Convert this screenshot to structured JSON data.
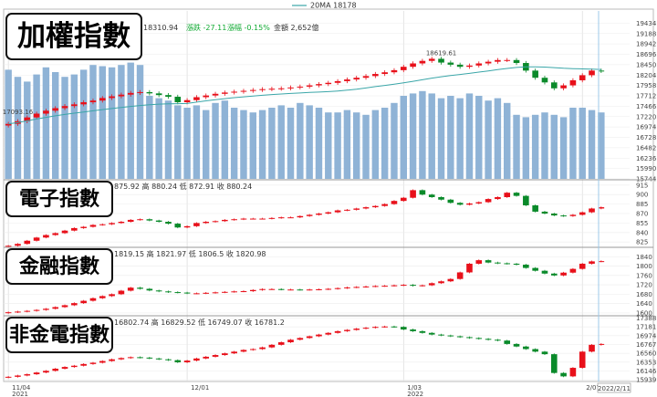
{
  "header": {
    "legend": "20MA 18178",
    "price": "18310.94",
    "change_label": "漲跌 -27.11",
    "pct_label": "漲幅 -0.15%",
    "amount_label": "金額 2,652億"
  },
  "labels": [
    "加權指數",
    "電子指數",
    "金融指數",
    "非金電指數"
  ],
  "colors": {
    "up": "#e8101a",
    "down": "#0a8a2a",
    "ma": "#3aa6a8",
    "volume": "#8fb3d6",
    "grid": "#d9d9d9"
  },
  "x_axis": {
    "ticks": [
      {
        "label": "11/04",
        "sub": "2021",
        "i": 0
      },
      {
        "label": "12/01",
        "sub": "",
        "i": 19
      },
      {
        "label": "1/03",
        "sub": "2022",
        "i": 42
      },
      {
        "label": "2/07",
        "sub": "",
        "i": 61
      }
    ],
    "cursor_label": "2022/2/11"
  },
  "chart_data": [
    {
      "type": "candlestick",
      "name": "加權指數",
      "ylim": [
        15744,
        19680
      ],
      "yticks": [
        15744,
        15990,
        16236,
        16482,
        16728,
        16974,
        17220,
        17466,
        17712,
        17958,
        18204,
        18450,
        18696,
        18942,
        19188,
        19434
      ],
      "annotations": [
        {
          "text": "18619.61",
          "i": 46
        },
        {
          "text": "17093.16",
          "i": 1
        }
      ],
      "ma_label": "20MA 18178",
      "close": [
        17048,
        17110,
        17200,
        17290,
        17360,
        17420,
        17470,
        17510,
        17560,
        17600,
        17660,
        17700,
        17740,
        17780,
        17800,
        17770,
        17730,
        17690,
        17560,
        17610,
        17680,
        17720,
        17760,
        17790,
        17810,
        17830,
        17850,
        17870,
        17880,
        17890,
        17910,
        17930,
        17960,
        17990,
        18020,
        18060,
        18100,
        18140,
        18180,
        18230,
        18270,
        18320,
        18400,
        18480,
        18540,
        18590,
        18500,
        18450,
        18400,
        18430,
        18480,
        18520,
        18560,
        18560,
        18490,
        18310,
        18140,
        18030,
        17890,
        17960,
        18080,
        18200,
        18310,
        18300
      ],
      "volume": [
        92,
        86,
        82,
        88,
        94,
        90,
        86,
        88,
        92,
        96,
        95,
        94,
        96,
        98,
        96,
        70,
        68,
        66,
        62,
        60,
        62,
        58,
        64,
        66,
        60,
        58,
        56,
        58,
        60,
        62,
        60,
        64,
        62,
        60,
        56,
        56,
        58,
        56,
        54,
        58,
        60,
        64,
        70,
        72,
        74,
        72,
        68,
        70,
        68,
        72,
        70,
        66,
        68,
        64,
        54,
        52,
        54,
        56,
        54,
        52,
        60,
        60,
        58,
        56
      ]
    },
    {
      "type": "candlestick",
      "name": "電子指數",
      "ylim": [
        818,
        922
      ],
      "yticks": [
        825,
        840,
        855,
        870,
        885,
        900,
        915
      ],
      "info": "875.92 高 880.24 低 872.91 收 880.24",
      "close": [
        819,
        822,
        827,
        832,
        836,
        839,
        843,
        847,
        849,
        852,
        853,
        855,
        857,
        860,
        861,
        859,
        857,
        854,
        848,
        850,
        855,
        857,
        858,
        860,
        861,
        862,
        862,
        862,
        863,
        864,
        864,
        866,
        868,
        870,
        872,
        875,
        876,
        878,
        880,
        882,
        885,
        890,
        895,
        907,
        900,
        896,
        892,
        887,
        884,
        886,
        888,
        893,
        896,
        903,
        898,
        883,
        873,
        870,
        867,
        866,
        868,
        872,
        878,
        880
      ]
    },
    {
      "type": "candlestick",
      "name": "金融指數",
      "ylim": [
        1592,
        1876
      ],
      "yticks": [
        1600,
        1640,
        1680,
        1720,
        1760,
        1800,
        1840
      ],
      "info": "1819.15 高 1821.97 低 1806.5 收 1820.98",
      "close": [
        1603,
        1606,
        1609,
        1613,
        1618,
        1625,
        1633,
        1642,
        1652,
        1663,
        1672,
        1680,
        1695,
        1708,
        1703,
        1696,
        1692,
        1689,
        1687,
        1684,
        1684,
        1686,
        1688,
        1690,
        1692,
        1693,
        1698,
        1702,
        1702,
        1700,
        1700,
        1699,
        1700,
        1701,
        1703,
        1706,
        1709,
        1711,
        1713,
        1715,
        1716,
        1718,
        1720,
        1716,
        1718,
        1727,
        1735,
        1745,
        1773,
        1810,
        1825,
        1815,
        1812,
        1810,
        1806,
        1792,
        1780,
        1768,
        1760,
        1772,
        1788,
        1810,
        1820,
        1821
      ]
    },
    {
      "type": "candlestick",
      "name": "非金電指數",
      "ylim": [
        15900,
        17420
      ],
      "yticks": [
        15939,
        16146,
        16353,
        16560,
        16767,
        16974,
        17181,
        17388
      ],
      "info": "16802.74 高 16829.52 低 16749.07 收 16781.2",
      "close": [
        16010,
        16040,
        16070,
        16110,
        16150,
        16200,
        16240,
        16270,
        16310,
        16340,
        16380,
        16420,
        16450,
        16470,
        16460,
        16440,
        16420,
        16400,
        16350,
        16390,
        16440,
        16480,
        16520,
        16560,
        16600,
        16640,
        16660,
        16700,
        16760,
        16820,
        16880,
        16920,
        16960,
        17000,
        17040,
        17080,
        17110,
        17140,
        17160,
        17180,
        17190,
        17180,
        17120,
        17080,
        17040,
        17000,
        16980,
        16960,
        16940,
        16920,
        16900,
        16880,
        16860,
        16780,
        16720,
        16660,
        16600,
        16540,
        16100,
        16020,
        16220,
        16600,
        16760,
        16780
      ]
    }
  ]
}
